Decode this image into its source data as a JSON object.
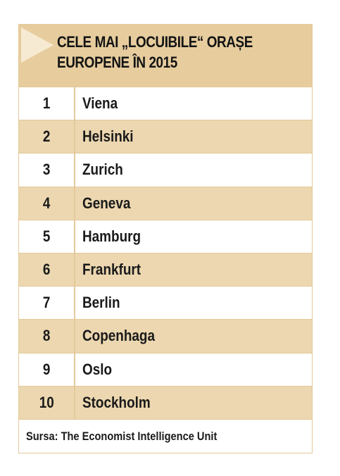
{
  "title": "CELE MAI „LOCUIBILE“ ORAȘE EUROPENE ÎN 2015",
  "title_lines": [
    "CELE MAI „LOCUIBILE“ ORAȘE",
    "EUROPENE ÎN 2015"
  ],
  "colors": {
    "header_bg": "#e7cd9e",
    "row_alt_bg": "#ecd7b0",
    "border": "#e3c99a",
    "accent_triangle": "#f6ead2"
  },
  "columns": [
    "rank",
    "city"
  ],
  "rows": [
    {
      "rank": "1",
      "city": "Viena"
    },
    {
      "rank": "2",
      "city": "Helsinki"
    },
    {
      "rank": "3",
      "city": "Zurich"
    },
    {
      "rank": "4",
      "city": "Geneva"
    },
    {
      "rank": "5",
      "city": "Hamburg"
    },
    {
      "rank": "6",
      "city": "Frankfurt"
    },
    {
      "rank": "7",
      "city": "Berlin"
    },
    {
      "rank": "8",
      "city": "Copenhaga"
    },
    {
      "rank": "9",
      "city": "Oslo"
    },
    {
      "rank": "10",
      "city": "Stockholm"
    }
  ],
  "source": "Sursa: The Economist Intelligence Unit"
}
